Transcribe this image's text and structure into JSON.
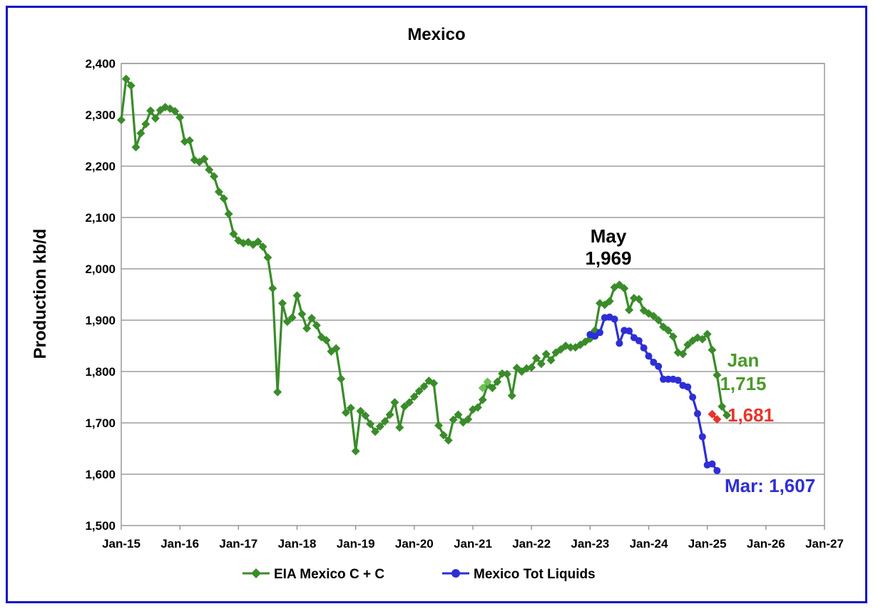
{
  "chart_data": {
    "type": "line",
    "title": "Mexico",
    "ylabel": "Production kb/d",
    "xlabel": "",
    "ylim": [
      1500,
      2400
    ],
    "xlim": [
      "Jan-15",
      "Jan-27"
    ],
    "grid": true,
    "legend_position": "bottom",
    "y_ticks": [
      "1,500",
      "1,600",
      "1,700",
      "1,800",
      "1,900",
      "2,000",
      "2,100",
      "2,200",
      "2,300",
      "2,400"
    ],
    "y_tick_values": [
      1500,
      1600,
      1700,
      1800,
      1900,
      2000,
      2100,
      2200,
      2300,
      2400
    ],
    "x_ticks": [
      "Jan-15",
      "Jan-16",
      "Jan-17",
      "Jan-18",
      "Jan-19",
      "Jan-20",
      "Jan-21",
      "Jan-22",
      "Jan-23",
      "Jan-24",
      "Jan-25",
      "Jan-26",
      "Jan-27"
    ],
    "series": [
      {
        "name": "EIA Mexico C + C",
        "color": "#3a8c2a",
        "marker": "diamond",
        "start": "2015-01",
        "values": [
          2290,
          2370,
          2357,
          2237,
          2264,
          2282,
          2308,
          2293,
          2309,
          2315,
          2312,
          2307,
          2295,
          2248,
          2250,
          2212,
          2208,
          2214,
          2193,
          2180,
          2150,
          2137,
          2107,
          2068,
          2055,
          2050,
          2052,
          2047,
          2053,
          2043,
          2022,
          1962,
          1760,
          1933,
          1897,
          1905,
          1948,
          1912,
          1884,
          1904,
          1890,
          1867,
          1861,
          1839,
          1845,
          1786,
          1720,
          1729,
          1645,
          1723,
          1714,
          1698,
          1683,
          1693,
          1703,
          1716,
          1740,
          1691,
          1732,
          1740,
          1751,
          1762,
          1771,
          1782,
          1777,
          1695,
          1676,
          1666,
          1706,
          1716,
          1701,
          1707,
          1726,
          1730,
          1745,
          1774,
          1768,
          1780,
          1796,
          1795,
          1753,
          1807,
          1800,
          1806,
          1808,
          1826,
          1815,
          1834,
          1822,
          1837,
          1843,
          1850,
          1847,
          1847,
          1852,
          1858,
          1864,
          1880,
          1933,
          1930,
          1937,
          1964,
          1969,
          1962,
          1920,
          1943,
          1941,
          1919,
          1913,
          1908,
          1900,
          1887,
          1880,
          1868,
          1837,
          1834,
          1852,
          1860,
          1866,
          1863,
          1873,
          1842,
          1793,
          1732,
          1715
        ],
        "highlight": {
          "start": "2021-03",
          "values": [
            1768,
            1780
          ],
          "color": "#6fbf58"
        }
      },
      {
        "name": "Mexico Tot Liquids",
        "color": "#2e2ed6",
        "marker": "circle",
        "start": "2023-01",
        "values": [
          1872,
          1869,
          1876,
          1905,
          1906,
          1902,
          1855,
          1880,
          1879,
          1866,
          1860,
          1846,
          1830,
          1818,
          1810,
          1785,
          1785,
          1785,
          1783,
          1773,
          1770,
          1750,
          1718,
          1673,
          1618,
          1620,
          1607
        ]
      },
      {
        "name": "",
        "color": "#e8342a",
        "marker": "diamond",
        "start": "2025-02",
        "values": [
          1717,
          1707
        ]
      }
    ],
    "annotations": [
      {
        "lines": [
          "May",
          "1,969"
        ],
        "color": "#000000"
      },
      {
        "lines": [
          "Jan",
          "1,715"
        ],
        "color": "#4a9a2a"
      },
      {
        "lines": [
          "1,681"
        ],
        "color": "#e8342a"
      },
      {
        "lines": [
          "Mar: 1,607"
        ],
        "color": "#2e2ed6"
      }
    ]
  }
}
